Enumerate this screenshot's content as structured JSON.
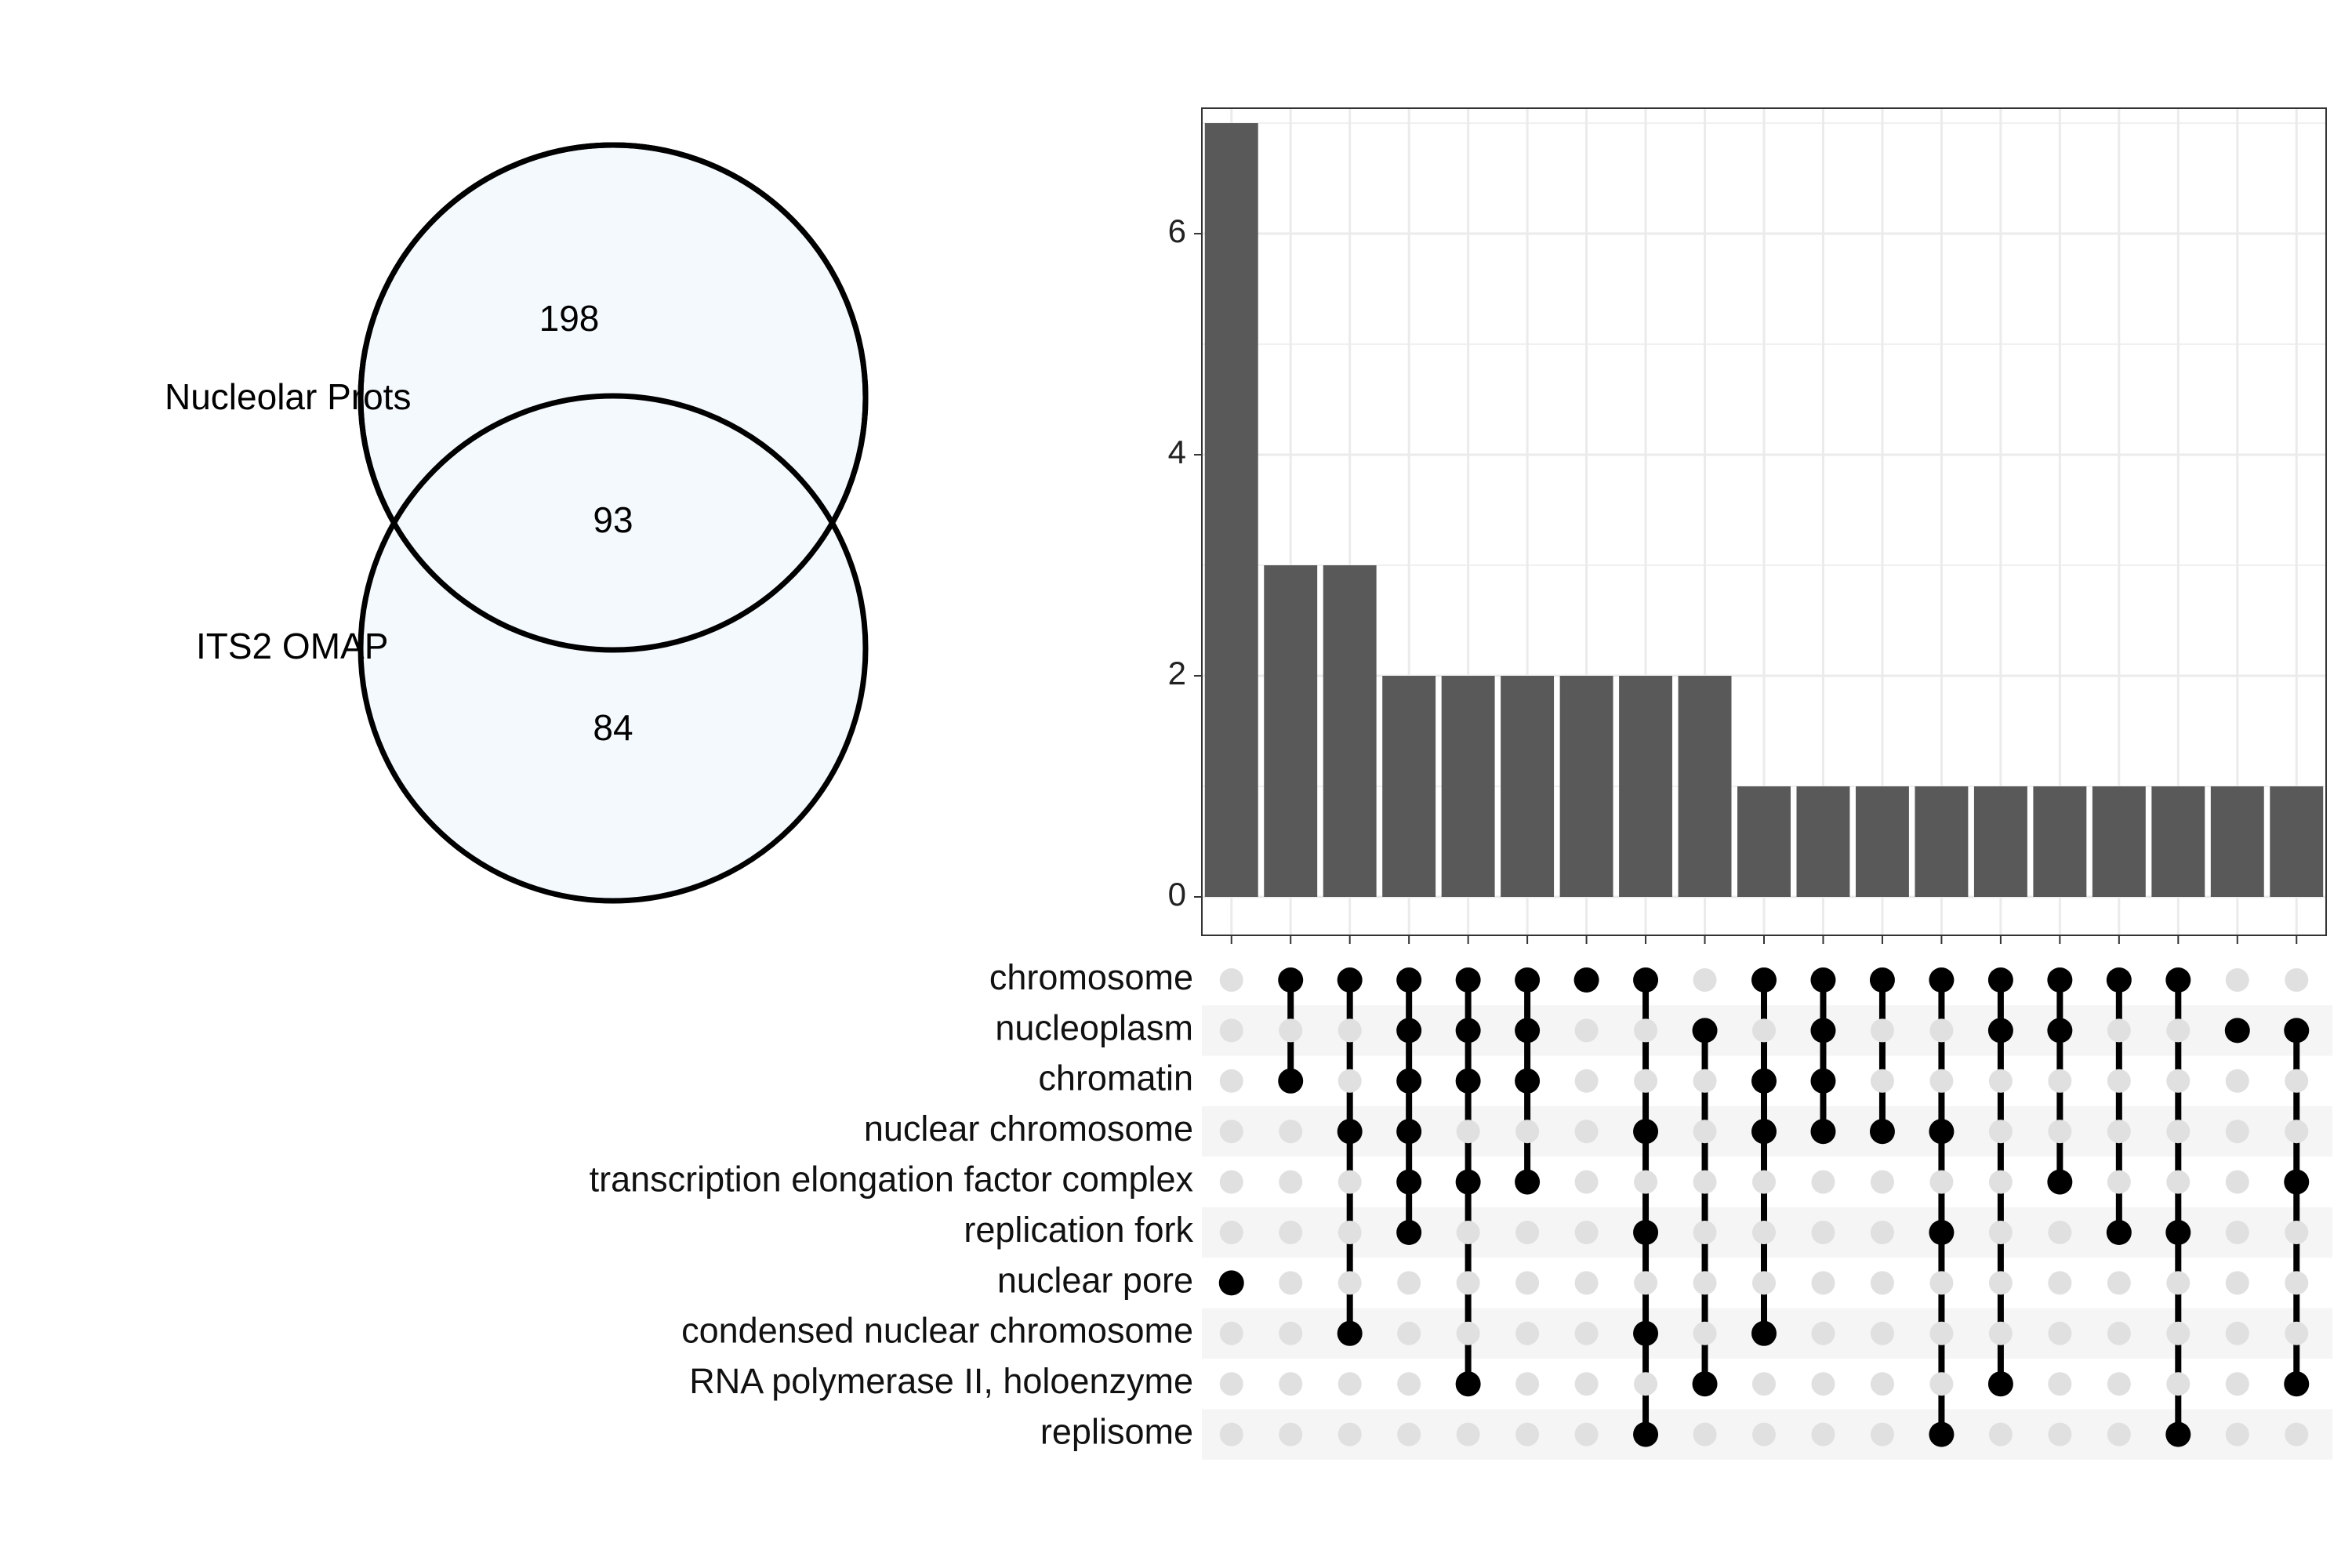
{
  "venn": {
    "set_a_label": "Nucleolar Prots",
    "set_b_label": "ITS2 OMAP",
    "only_a": "198",
    "both": "93",
    "only_b": "84",
    "fill_color": "#f4f9fe",
    "stroke_color": "#000000"
  },
  "chart_data": {
    "type": "bar",
    "subtype": "upset",
    "title": "",
    "xlabel": "",
    "ylabel": "",
    "ylim": [
      0,
      7.3
    ],
    "yticks": [
      "0",
      "2",
      "4",
      "6"
    ],
    "grid": true,
    "bar_color": "#595959",
    "sets": [
      "chromosome",
      "nucleoplasm",
      "chromatin",
      "nuclear chromosome",
      "transcription elongation factor complex",
      "replication fork",
      "nuclear pore",
      "condensed nuclear chromosome",
      "RNA polymerase II, holoenzyme",
      "replisome"
    ],
    "intersections": [
      {
        "members": [
          "nuclear pore"
        ],
        "value": 7
      },
      {
        "members": [
          "chromosome",
          "chromatin"
        ],
        "value": 3
      },
      {
        "members": [
          "chromosome",
          "nuclear chromosome",
          "condensed nuclear chromosome"
        ],
        "value": 3
      },
      {
        "members": [
          "chromosome",
          "nucleoplasm",
          "chromatin",
          "nuclear chromosome",
          "transcription elongation factor complex",
          "replication fork"
        ],
        "value": 2
      },
      {
        "members": [
          "chromosome",
          "nucleoplasm",
          "chromatin",
          "transcription elongation factor complex",
          "RNA polymerase II, holoenzyme"
        ],
        "value": 2
      },
      {
        "members": [
          "chromosome",
          "nucleoplasm",
          "chromatin",
          "transcription elongation factor complex"
        ],
        "value": 2
      },
      {
        "members": [
          "chromosome"
        ],
        "value": 2
      },
      {
        "members": [
          "chromosome",
          "nuclear chromosome",
          "replication fork",
          "condensed nuclear chromosome",
          "replisome"
        ],
        "value": 2
      },
      {
        "members": [
          "nucleoplasm",
          "RNA polymerase II, holoenzyme"
        ],
        "value": 2
      },
      {
        "members": [
          "chromosome",
          "chromatin",
          "nuclear chromosome",
          "condensed nuclear chromosome"
        ],
        "value": 1
      },
      {
        "members": [
          "chromosome",
          "nucleoplasm",
          "chromatin",
          "nuclear chromosome"
        ],
        "value": 1
      },
      {
        "members": [
          "chromosome",
          "nuclear chromosome"
        ],
        "value": 1
      },
      {
        "members": [
          "chromosome",
          "nuclear chromosome",
          "replication fork",
          "replisome"
        ],
        "value": 1
      },
      {
        "members": [
          "chromosome",
          "nucleoplasm",
          "RNA polymerase II, holoenzyme"
        ],
        "value": 1
      },
      {
        "members": [
          "chromosome",
          "nucleoplasm",
          "transcription elongation factor complex"
        ],
        "value": 1
      },
      {
        "members": [
          "chromosome",
          "replication fork"
        ],
        "value": 1
      },
      {
        "members": [
          "chromosome",
          "replication fork",
          "replisome"
        ],
        "value": 1
      },
      {
        "members": [
          "nucleoplasm"
        ],
        "value": 1
      },
      {
        "members": [
          "nucleoplasm",
          "transcription elongation factor complex",
          "RNA polymerase II, holoenzyme"
        ],
        "value": 1
      }
    ]
  }
}
